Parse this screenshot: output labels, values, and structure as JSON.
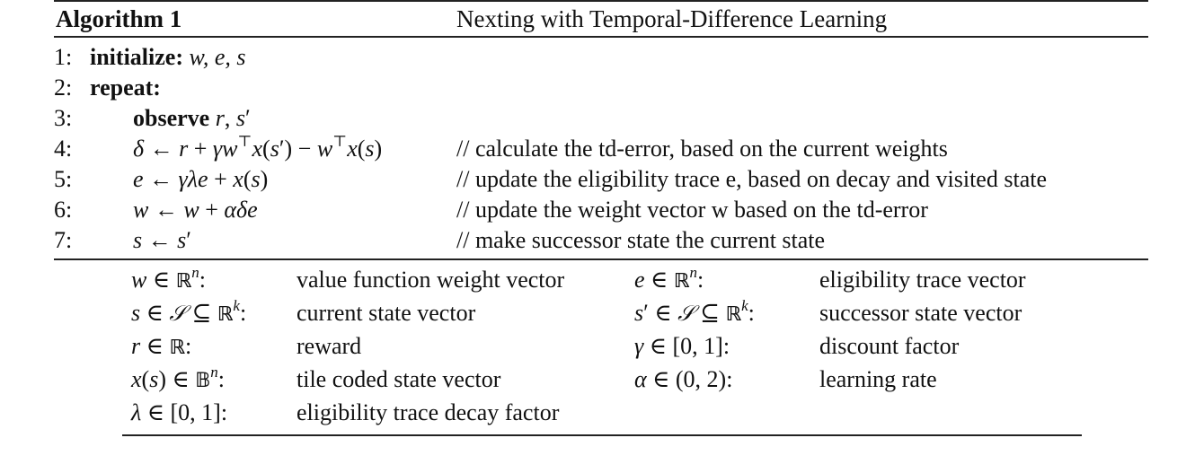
{
  "algorithm": {
    "label": "Algorithm 1",
    "title": "Nexting with Temporal-Difference Learning"
  },
  "steps": {
    "n1": "1:",
    "n2": "2:",
    "n3": "3:",
    "n4": "4:",
    "n5": "5:",
    "n6": "6:",
    "n7": "7:",
    "s1_kw": "initialize:",
    "s1_vars": "w, e, s",
    "s2_kw": "repeat:",
    "s3_kw": "observe",
    "c4": "// calculate the td-error, based on the current weights",
    "c5": "// update the eligibility trace e, based on decay and visited state",
    "c6": "// update the weight vector w based on the td-error",
    "c7": "// make successor state the current state"
  },
  "legend": {
    "d_w": "value function weight vector",
    "d_e": "eligibility trace vector",
    "d_s": "current state vector",
    "d_sp": "successor state vector",
    "d_r": "reward",
    "d_gamma": "discount factor",
    "d_x": "tile coded state vector",
    "d_alpha": "learning rate",
    "d_lambda": "eligibility trace decay factor"
  }
}
